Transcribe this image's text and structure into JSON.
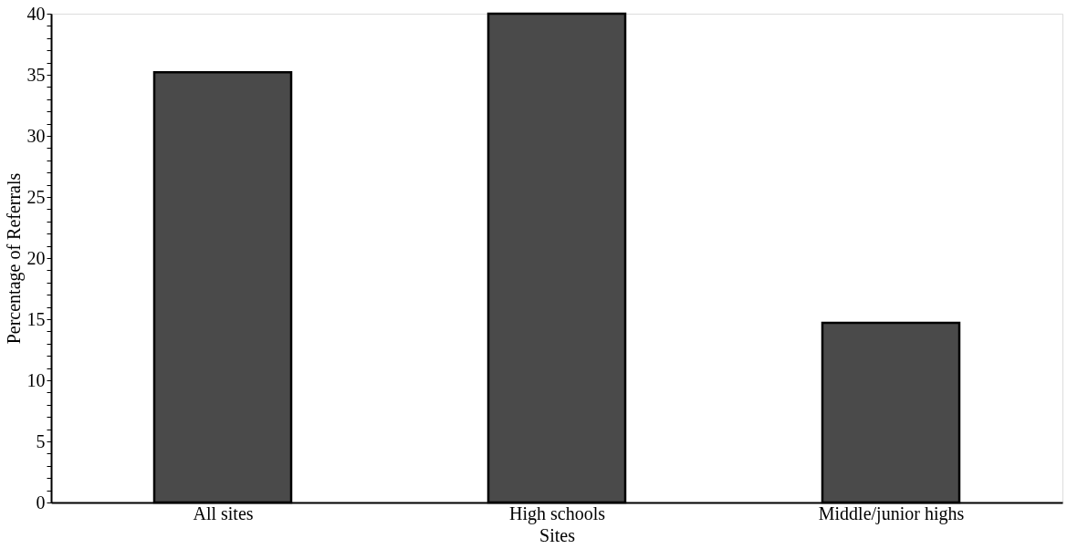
{
  "chart_data": {
    "type": "bar",
    "xlabel": "Sites",
    "ylabel": "Percentage of Referrals",
    "categories": [
      "All sites",
      "High schools",
      "Middle/junior highs"
    ],
    "values": [
      35.2,
      40,
      14.7
    ],
    "color": "#4a4a4a",
    "ylim": [
      0,
      40
    ],
    "yticks": [
      0,
      5,
      10,
      15,
      20,
      25,
      30,
      35,
      40,
      {
        "value": 1,
        "label": null
      },
      {
        "value": 2,
        "label": null
      },
      {
        "value": 3,
        "label": null
      },
      {
        "value": 4,
        "label": null
      },
      {
        "value": 6,
        "label": null
      },
      {
        "value": 7,
        "label": null
      },
      {
        "value": 8,
        "label": null
      },
      {
        "value": 9,
        "label": null
      },
      {
        "value": 11,
        "label": null
      },
      {
        "value": 12,
        "label": null
      },
      {
        "value": 13,
        "label": null
      },
      {
        "value": 14,
        "label": null
      },
      {
        "value": 16,
        "label": null
      },
      {
        "value": 17,
        "label": null
      },
      {
        "value": 18,
        "label": null
      },
      {
        "value": 19,
        "label": null
      },
      {
        "value": 21,
        "label": null
      },
      {
        "value": 22,
        "label": null
      },
      {
        "value": 23,
        "label": null
      },
      {
        "value": 24,
        "label": null
      },
      {
        "value": 26,
        "label": null
      },
      {
        "value": 27,
        "label": null
      },
      {
        "value": 28,
        "label": null
      },
      {
        "value": 29,
        "label": null
      },
      {
        "value": 31,
        "label": null
      },
      {
        "value": 32,
        "label": null
      },
      {
        "value": 33,
        "label": null
      },
      {
        "value": 34,
        "label": null
      },
      {
        "value": 36,
        "label": null
      },
      {
        "value": 37,
        "label": null
      },
      {
        "value": 38,
        "label": null
      },
      {
        "value": 39,
        "label": null
      }
    ],
    "grid": false
  }
}
